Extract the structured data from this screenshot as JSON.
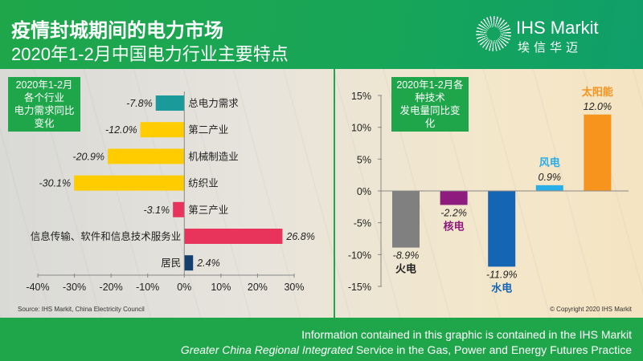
{
  "header": {
    "title": "疫情封城期间的电力市场",
    "subtitle": "2020年1-2月中国电力行业主要特点",
    "logo_name": "IHS Markit",
    "logo_cn": "埃信华迈"
  },
  "colors": {
    "green": "#1fa64a"
  },
  "chart_data": [
    {
      "type": "bar",
      "orientation": "horizontal",
      "title": "2020年1-2月各个行业电力需求同比变化",
      "title_lines": [
        "2020年1-2月各个行业",
        "电力需求同比变化"
      ],
      "categories": [
        "总电力需求",
        "第二产业",
        "机械制造业",
        "纺织业",
        "第三产业",
        "信息传输、软件和信息技术服务业",
        "居民"
      ],
      "values": [
        -7.8,
        -12.0,
        -20.9,
        -30.1,
        -3.1,
        26.8,
        2.4
      ],
      "labels": [
        "-7.8%",
        "-12.0%",
        "-20.9%",
        "-30.1%",
        "-3.1%",
        "26.8%",
        "2.4%"
      ],
      "colors": [
        "#1a9a9a",
        "#ffcc00",
        "#ffcc00",
        "#ffcc00",
        "#e8345a",
        "#e8345a",
        "#123f6e"
      ],
      "xlim": [
        -40,
        30
      ],
      "xticks": [
        "-40%",
        "-30%",
        "-20%",
        "-10%",
        "0%",
        "10%",
        "20%",
        "30%"
      ]
    },
    {
      "type": "bar",
      "orientation": "vertical",
      "title": "2020年1-2月各种技术发电量同比变化",
      "title_lines": [
        "2020年1-2月各种技术",
        "发电量同比变化"
      ],
      "categories": [
        "火电",
        "核电",
        "水电",
        "风电",
        "太阳能"
      ],
      "values": [
        -8.9,
        -2.2,
        -11.9,
        0.9,
        12.0
      ],
      "labels": [
        "-8.9%",
        "-2.2%",
        "-11.9%",
        "0.9%",
        "12.0%"
      ],
      "colors": [
        "#808080",
        "#8e1b7e",
        "#1565b5",
        "#29aee6",
        "#f7941d"
      ],
      "category_colors": [
        "#222222",
        "#8e1b7e",
        "#1565b5",
        "#29aee6",
        "#f7941d"
      ],
      "ylim": [
        -15,
        15
      ],
      "yticks": [
        "15%",
        "10%",
        "5%",
        "0%",
        "-5%",
        "-10%",
        "-15%"
      ]
    }
  ],
  "source": "Source: IHS Markit, China Electricity Council",
  "copyright": "© Copyright  2020 IHS Markit",
  "footer": {
    "line1": "Information contained in this graphic is contained in the IHS Markit",
    "line2_italic": "Greater China Regional Integrated",
    "line2_rest": " Service in the Gas, Power and Energy Futures Practice"
  }
}
